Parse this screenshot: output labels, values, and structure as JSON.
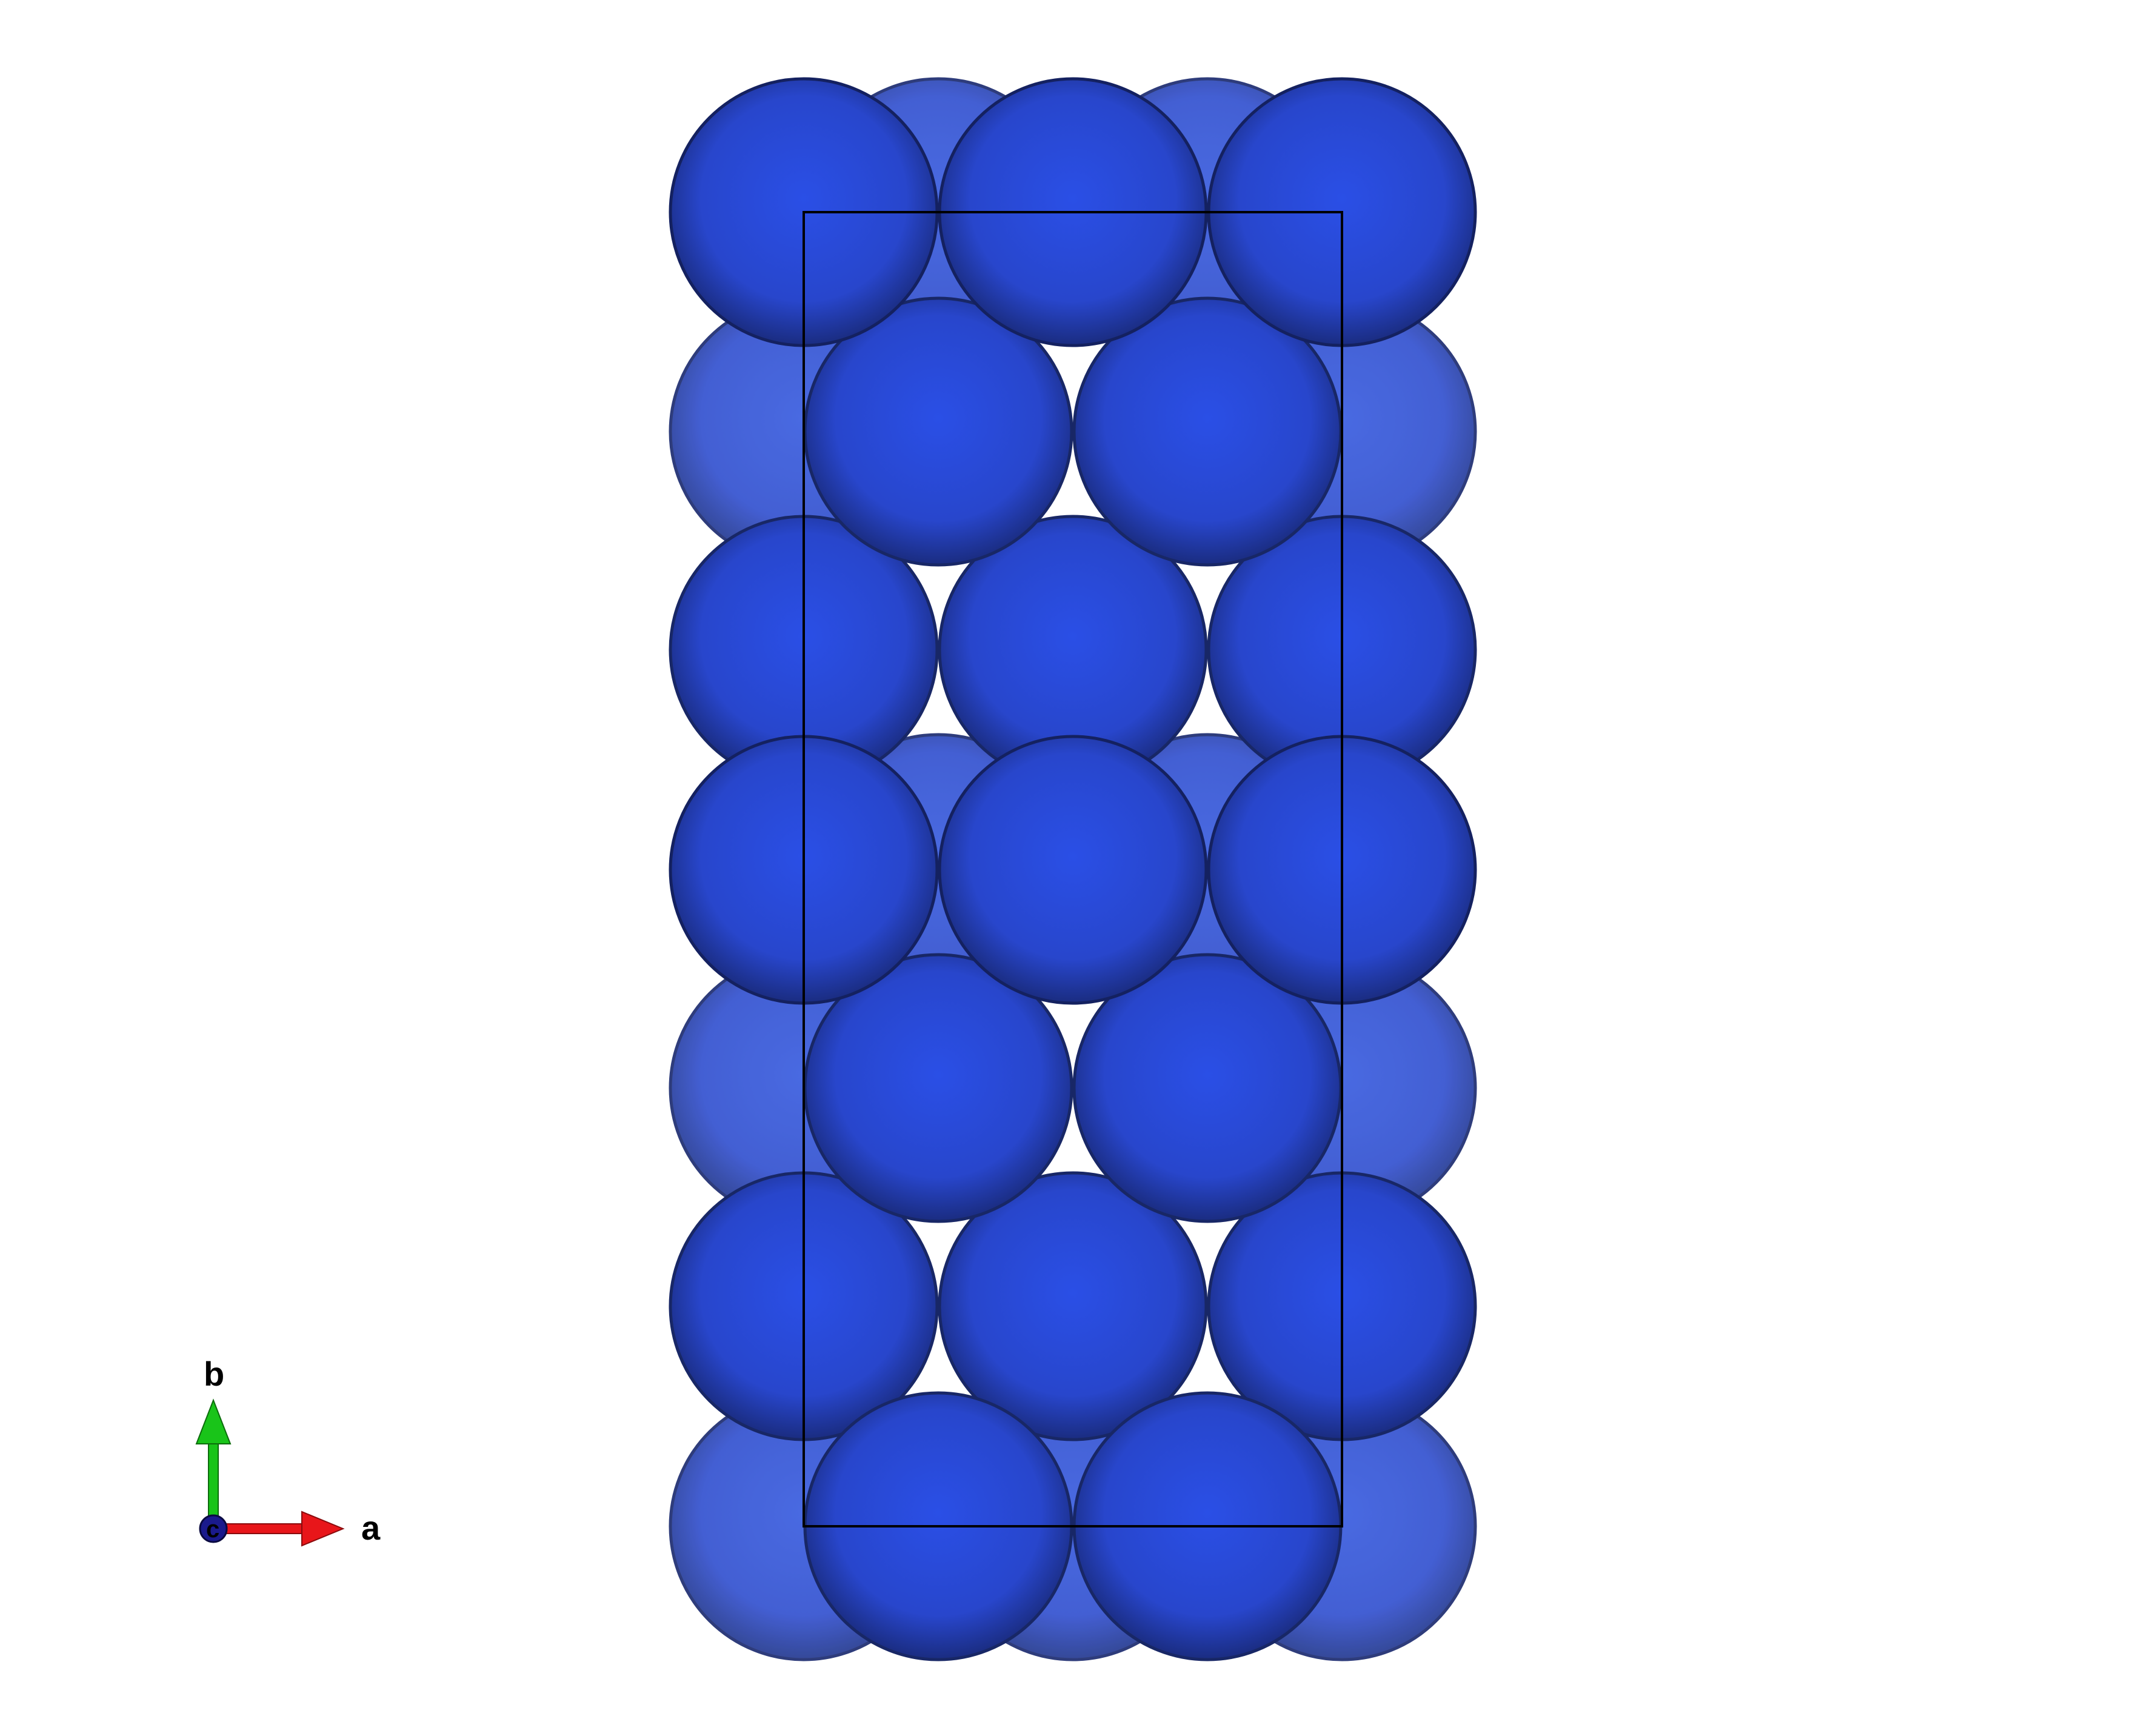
{
  "structure": {
    "atom_color": "#2e4fd6",
    "atom_rim_color": "#152366",
    "cell_edge_color": "#000000",
    "background_color": "#ffffff"
  },
  "axes": {
    "a_label": "a",
    "b_label": "b",
    "c_label": "c",
    "a_color": "#e8161a",
    "b_color": "#19c419",
    "c_color": "#1a1a8c"
  }
}
